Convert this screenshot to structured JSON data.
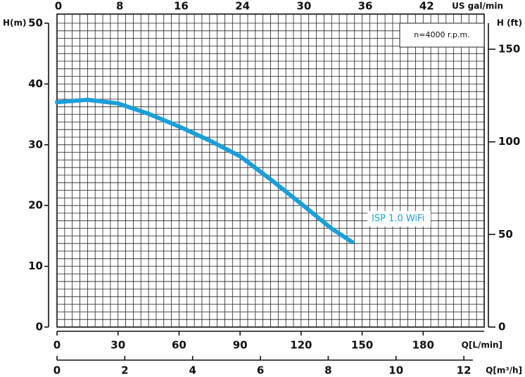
{
  "chart_data": {
    "type": "line",
    "x_label": "Q[L/min]",
    "y_label": "H(m)",
    "y2_label": "H (ft)",
    "x2_label": "US  gal/min",
    "x3_label": "Q[m³/h]",
    "annotation": "n=4000 r.p.m.",
    "x": [
      0,
      15,
      30,
      45,
      60,
      75,
      90,
      105,
      120,
      135,
      145
    ],
    "series": [
      {
        "name": "ISP 1.0 WiFi",
        "color": "#1a9fd9",
        "values": [
          37,
          37.4,
          36.8,
          35.1,
          33.0,
          30.7,
          28.1,
          24.3,
          20.3,
          16.2,
          14.0
        ]
      }
    ],
    "xlim": [
      0,
      210
    ],
    "xticks": [
      0,
      30,
      60,
      90,
      120,
      150,
      180
    ],
    "ylim": [
      0,
      50
    ],
    "yticks": [
      0,
      10,
      20,
      30,
      40,
      50
    ],
    "y2lim": [
      0,
      164.04
    ],
    "y2ticks": [
      0,
      50,
      100,
      150
    ],
    "x2_categories": [
      "0",
      "8",
      "16",
      "24",
      "30",
      "36",
      "42"
    ],
    "x3lim": [
      0,
      12.6
    ],
    "x3ticks": [
      0,
      2,
      4,
      6,
      8,
      10,
      12
    ],
    "grid": true
  }
}
